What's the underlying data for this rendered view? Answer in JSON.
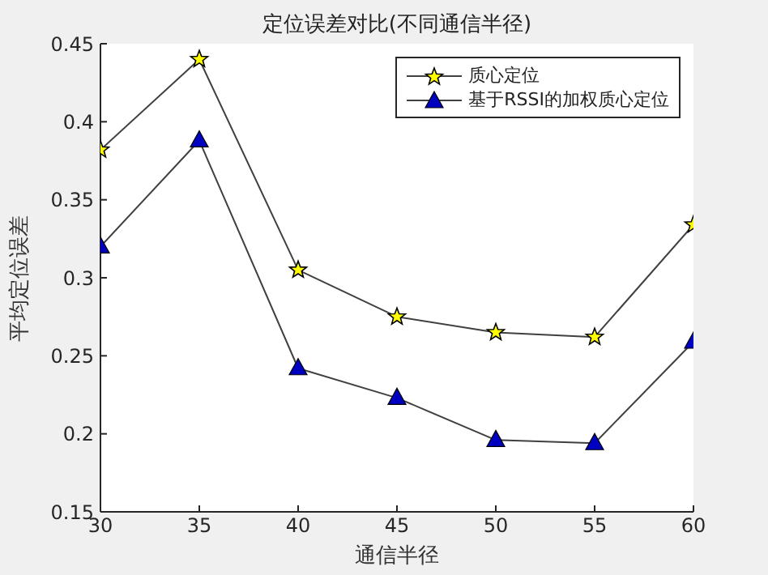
{
  "chart_data": {
    "type": "line",
    "title": "定位误差对比(不同通信半径)",
    "xlabel": "通信半径",
    "ylabel": "平均定位误差",
    "x": [
      30,
      35,
      40,
      45,
      50,
      55,
      60
    ],
    "series": [
      {
        "name": "质心定位",
        "color": "#ffff00",
        "marker": "star",
        "values": [
          0.382,
          0.44,
          0.305,
          0.275,
          0.265,
          0.262,
          0.334
        ]
      },
      {
        "name": "基于RSSI的加权质心定位",
        "color": "#0000c0",
        "marker": "triangle",
        "values": [
          0.32,
          0.388,
          0.242,
          0.223,
          0.196,
          0.194,
          0.259
        ]
      }
    ],
    "xlim": [
      30,
      60
    ],
    "xticks": [
      30,
      35,
      40,
      45,
      50,
      55,
      60
    ],
    "ylim": [
      0.15,
      0.45
    ],
    "yticks": [
      0.15,
      0.2,
      0.25,
      0.3,
      0.35,
      0.4,
      0.45
    ],
    "grid": false,
    "legend": "top right",
    "line_style": "solid"
  }
}
